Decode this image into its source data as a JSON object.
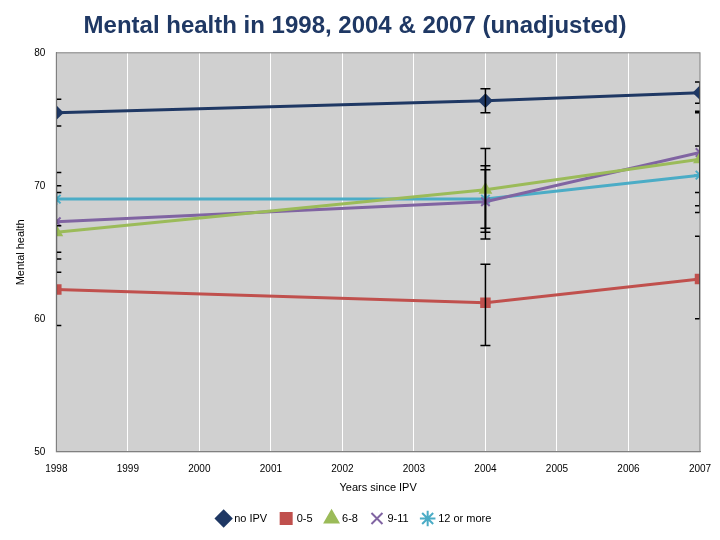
{
  "chart_data": {
    "type": "line",
    "title": "Mental health in 1998, 2004 & 2007 (unadjusted)",
    "x_label": "Years since IPV",
    "y_label": "Mental health",
    "x": [
      1998,
      2004,
      2007
    ],
    "xlim": [
      1998,
      2007
    ],
    "xticks": [
      1998,
      1999,
      2000,
      2001,
      2002,
      2003,
      2004,
      2005,
      2006,
      2007
    ],
    "ylim": [
      50,
      80
    ],
    "yticks": [
      50,
      60,
      70,
      80
    ],
    "grid": true,
    "legend": "bottom",
    "series": [
      {
        "name": "no IPV",
        "color": "#1f3864",
        "marker": "diamond",
        "values": [
          75.5,
          76.4,
          77.0
        ],
        "error_low": [
          74.5,
          75.5,
          76.2
        ],
        "error_high": [
          76.5,
          77.3,
          77.8
        ]
      },
      {
        "name": "0-5",
        "color": "#c0504d",
        "marker": "square",
        "values": [
          62.2,
          61.2,
          63.0
        ],
        "error_low": [
          59.5,
          58.0,
          60.0
        ],
        "error_high": [
          65.0,
          64.1,
          66.2
        ]
      },
      {
        "name": "6-8",
        "color": "#9bbb59",
        "marker": "triangle",
        "values": [
          66.5,
          69.7,
          72.0
        ],
        "error_low": [
          63.5,
          66.5,
          68.0
        ],
        "error_high": [
          69.5,
          72.8,
          75.6
        ]
      },
      {
        "name": "9-11",
        "color": "#8064a2",
        "marker": "x",
        "values": [
          67.3,
          68.8,
          72.5
        ],
        "error_low": [
          64.5,
          66.0,
          69.5
        ],
        "error_high": [
          70.0,
          71.5,
          75.5
        ]
      },
      {
        "name": "12 or more",
        "color": "#4bacc6",
        "marker": "star",
        "values": [
          69.0,
          69.0,
          70.8
        ],
        "error_low": [
          67.0,
          66.8,
          68.5
        ],
        "error_high": [
          71.0,
          71.2,
          73.0
        ]
      }
    ]
  }
}
